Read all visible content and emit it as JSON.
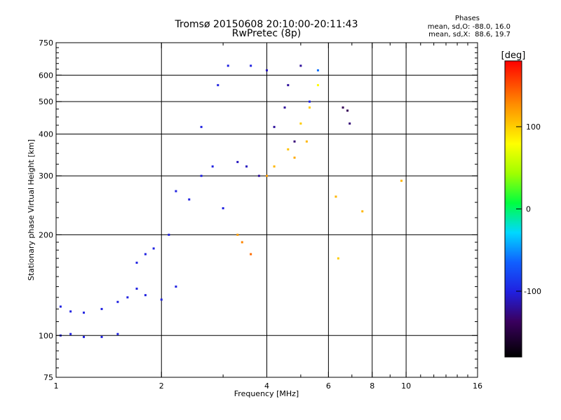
{
  "chart_data": {
    "type": "scatter",
    "title": "Tromsø 20150608 20:10:00-20:11:43",
    "subtitle": "RwPretec (8p)",
    "xlabel": "Frequency [MHz]",
    "ylabel": "Stationary phase Virtual Height [km]",
    "xscale": "log",
    "yscale": "log",
    "xlim": [
      1,
      16
    ],
    "ylim": [
      75,
      750
    ],
    "xticks": [
      1,
      2,
      4,
      6,
      8,
      10,
      16
    ],
    "xtick_labels": [
      "1",
      "2",
      "4",
      "6",
      "8",
      "10",
      "16"
    ],
    "yticks": [
      75,
      100,
      200,
      300,
      400,
      500,
      600,
      750
    ],
    "ytick_labels": [
      "75",
      "100",
      "200",
      "300",
      "400",
      "500",
      "600",
      "750"
    ],
    "grid": true,
    "colorbar": {
      "label": "[deg]",
      "range": [
        -180,
        180
      ],
      "tick_labels": [
        "-100",
        "0",
        "100"
      ],
      "tick_values": [
        -100,
        0,
        100
      ]
    },
    "stats_title": "Phases",
    "stats_lines": [
      "mean, sd,O: -88.0, 16.0",
      "mean, sd,X:  88.6, 19.7"
    ],
    "series": [
      {
        "points": [
          [
            1.03,
            100,
            -100
          ],
          [
            1.1,
            101,
            -100
          ],
          [
            1.2,
            99,
            -100
          ],
          [
            1.35,
            99,
            -100
          ],
          [
            1.5,
            101,
            -100
          ],
          [
            1.03,
            122,
            -100
          ],
          [
            1.1,
            118,
            -100
          ],
          [
            1.2,
            117,
            -100
          ],
          [
            1.35,
            120,
            -100
          ],
          [
            1.5,
            126,
            -100
          ],
          [
            1.6,
            130,
            -100
          ],
          [
            1.7,
            138,
            -100
          ],
          [
            1.8,
            132,
            -100
          ],
          [
            2.0,
            128,
            -100
          ],
          [
            2.2,
            140,
            -100
          ],
          [
            1.7,
            165,
            -100
          ],
          [
            1.8,
            175,
            -100
          ],
          [
            1.9,
            182,
            -100
          ],
          [
            2.1,
            200,
            -100
          ],
          [
            2.2,
            270,
            -100
          ],
          [
            2.4,
            255,
            -100
          ],
          [
            2.6,
            300,
            -100
          ],
          [
            2.8,
            320,
            -100
          ],
          [
            3.0,
            240,
            -100
          ],
          [
            2.6,
            420,
            -100
          ],
          [
            2.9,
            560,
            -100
          ],
          [
            3.1,
            640,
            -100
          ],
          [
            3.3,
            330,
            -110
          ],
          [
            3.5,
            320,
            -110
          ],
          [
            3.8,
            300,
            -120
          ],
          [
            4.2,
            420,
            -120
          ],
          [
            4.6,
            560,
            -120
          ],
          [
            5.0,
            640,
            -120
          ],
          [
            5.3,
            500,
            -100
          ],
          [
            5.6,
            620,
            -60
          ],
          [
            3.6,
            640,
            -100
          ],
          [
            4.0,
            620,
            -110
          ],
          [
            4.5,
            480,
            -120
          ],
          [
            4.8,
            380,
            -130
          ],
          [
            6.6,
            480,
            -140
          ],
          [
            6.8,
            470,
            -140
          ],
          [
            6.9,
            430,
            -130
          ]
        ]
      },
      {
        "points": [
          [
            3.3,
            200,
            120
          ],
          [
            3.4,
            190,
            130
          ],
          [
            3.6,
            175,
            140
          ],
          [
            4.2,
            320,
            110
          ],
          [
            4.6,
            360,
            105
          ],
          [
            5.0,
            430,
            100
          ],
          [
            5.3,
            480,
            100
          ],
          [
            5.6,
            560,
            80
          ],
          [
            5.2,
            380,
            110
          ],
          [
            4.8,
            340,
            115
          ],
          [
            4.0,
            300,
            120
          ],
          [
            6.3,
            260,
            110
          ],
          [
            6.4,
            170,
            100
          ],
          [
            7.5,
            235,
            110
          ],
          [
            9.7,
            290,
            110
          ]
        ]
      }
    ]
  }
}
